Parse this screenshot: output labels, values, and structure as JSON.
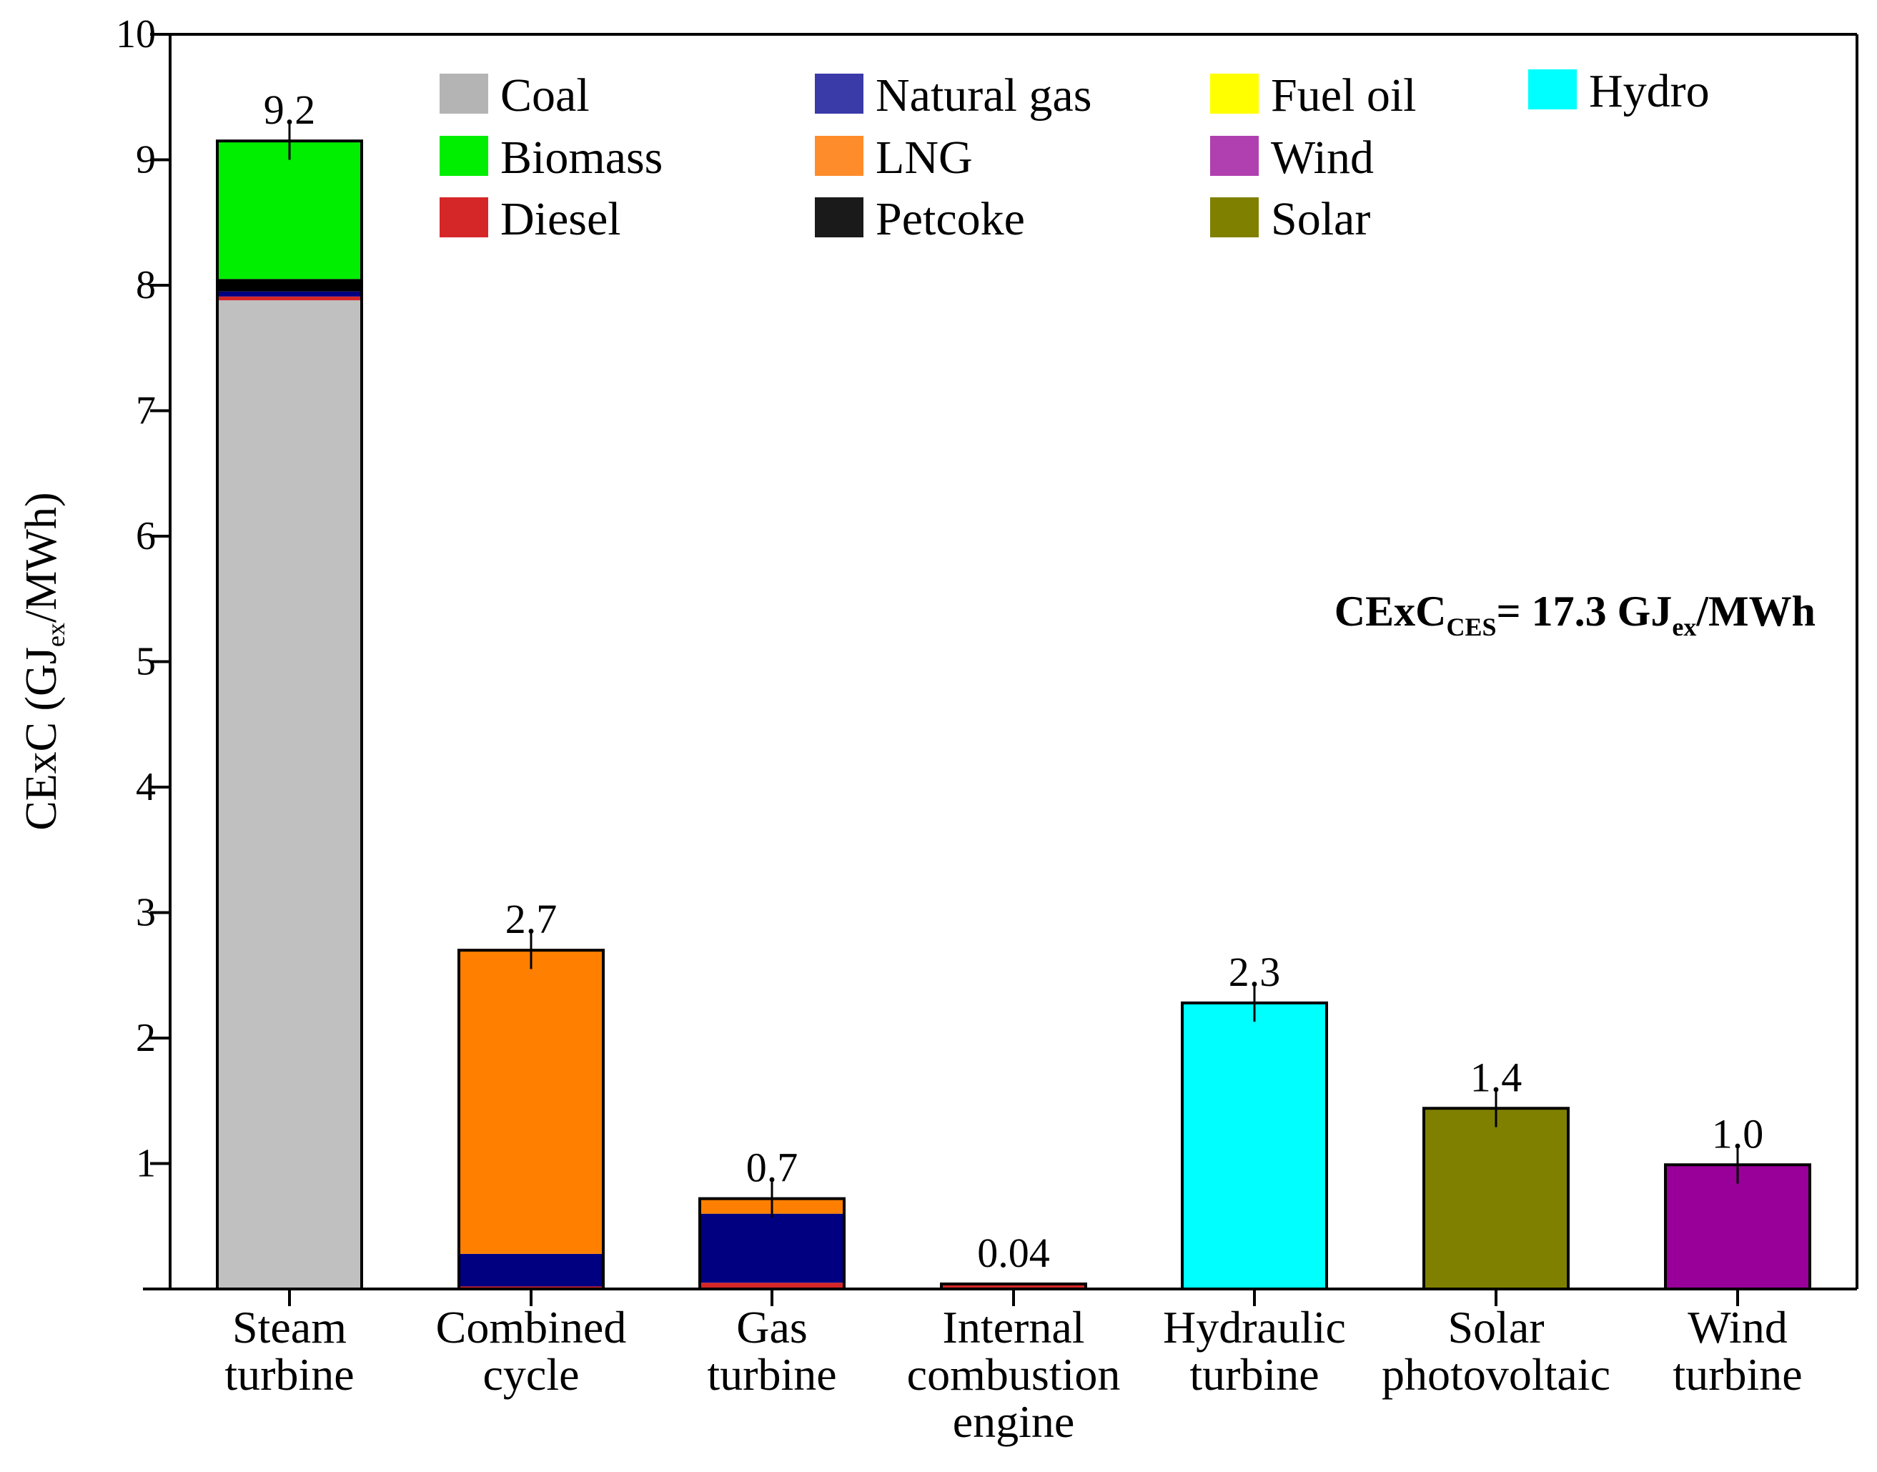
{
  "chart_data": {
    "type": "bar",
    "stacked": true,
    "title": "",
    "xlabel": "",
    "ylabel": "CExC (GJ",
    "ylabel_sub": "ex",
    "ylabel_tail": "/MWh)",
    "ylim": [
      0,
      10
    ],
    "yticks": [
      "1",
      "2",
      "3",
      "4",
      "5",
      "6",
      "7",
      "8",
      "9",
      "10"
    ],
    "grid": false,
    "legend_position": "top",
    "categories": [
      [
        "Steam",
        "turbine"
      ],
      [
        "Combined",
        "cycle"
      ],
      [
        "Gas",
        "turbine"
      ],
      [
        "Internal",
        "combustion",
        "engine"
      ],
      [
        "Hydraulic",
        "turbine"
      ],
      [
        "Solar",
        "photovoltaic"
      ],
      [
        "Wind",
        "turbine"
      ]
    ],
    "totals": [
      "9.2",
      "2.7",
      "0.7",
      "0.04",
      "2.3",
      "1.4",
      "1.0"
    ],
    "error": [
      0.15,
      0.15,
      0.15,
      0.0,
      0.15,
      0.15,
      0.15
    ],
    "series": [
      {
        "name": "Coal",
        "color": "#c0c0c0",
        "values": [
          7.88,
          0,
          0,
          0,
          0,
          0,
          0
        ]
      },
      {
        "name": "Diesel",
        "color": "#d62728",
        "values": [
          0.03,
          0.02,
          0.05,
          0.04,
          0,
          0,
          0
        ]
      },
      {
        "name": "Natural gas",
        "color": "#000080",
        "values": [
          0.04,
          0.26,
          0.55,
          0,
          0,
          0,
          0
        ]
      },
      {
        "name": "Petcoke",
        "color": "#000000",
        "values": [
          0.1,
          0,
          0,
          0,
          0,
          0,
          0
        ]
      },
      {
        "name": "LNG",
        "color": "#ff8000",
        "values": [
          0,
          2.42,
          0.12,
          0,
          0,
          0,
          0
        ]
      },
      {
        "name": "Biomass",
        "color": "#00ee00",
        "values": [
          1.1,
          0,
          0,
          0,
          0,
          0,
          0
        ]
      },
      {
        "name": "Fuel oil",
        "color": "#ffff00",
        "values": [
          0,
          0,
          0,
          0,
          0,
          0,
          0
        ]
      },
      {
        "name": "Hydro",
        "color": "#00ffff",
        "values": [
          0,
          0,
          0,
          0,
          2.28,
          0,
          0
        ]
      },
      {
        "name": "Solar",
        "color": "#808000",
        "values": [
          0,
          0,
          0,
          0,
          0,
          1.44,
          0
        ]
      },
      {
        "name": "Wind",
        "color": "#990099",
        "values": [
          0,
          0,
          0,
          0,
          0,
          0,
          0.99
        ]
      }
    ],
    "legend": [
      {
        "name": "Coal",
        "color": "#b4b4b4"
      },
      {
        "name": "Biomass",
        "color": "#00ee00"
      },
      {
        "name": "Diesel",
        "color": "#d62728"
      },
      {
        "name": "Natural gas",
        "color": "#3a3aa8"
      },
      {
        "name": "LNG",
        "color": "#ff8c2a"
      },
      {
        "name": "Petcoke",
        "color": "#1a1a1a"
      },
      {
        "name": "Fuel oil",
        "color": "#ffff00"
      },
      {
        "name": "Wind",
        "color": "#b040b0"
      },
      {
        "name": "Solar",
        "color": "#808000"
      },
      {
        "name": "Hydro",
        "color": "#00ffff"
      }
    ],
    "annotation": {
      "main": "CExC",
      "sub1": "CES",
      "mid": "= 17.3 GJ",
      "sub2": "ex",
      "tail": "/MWh"
    }
  }
}
